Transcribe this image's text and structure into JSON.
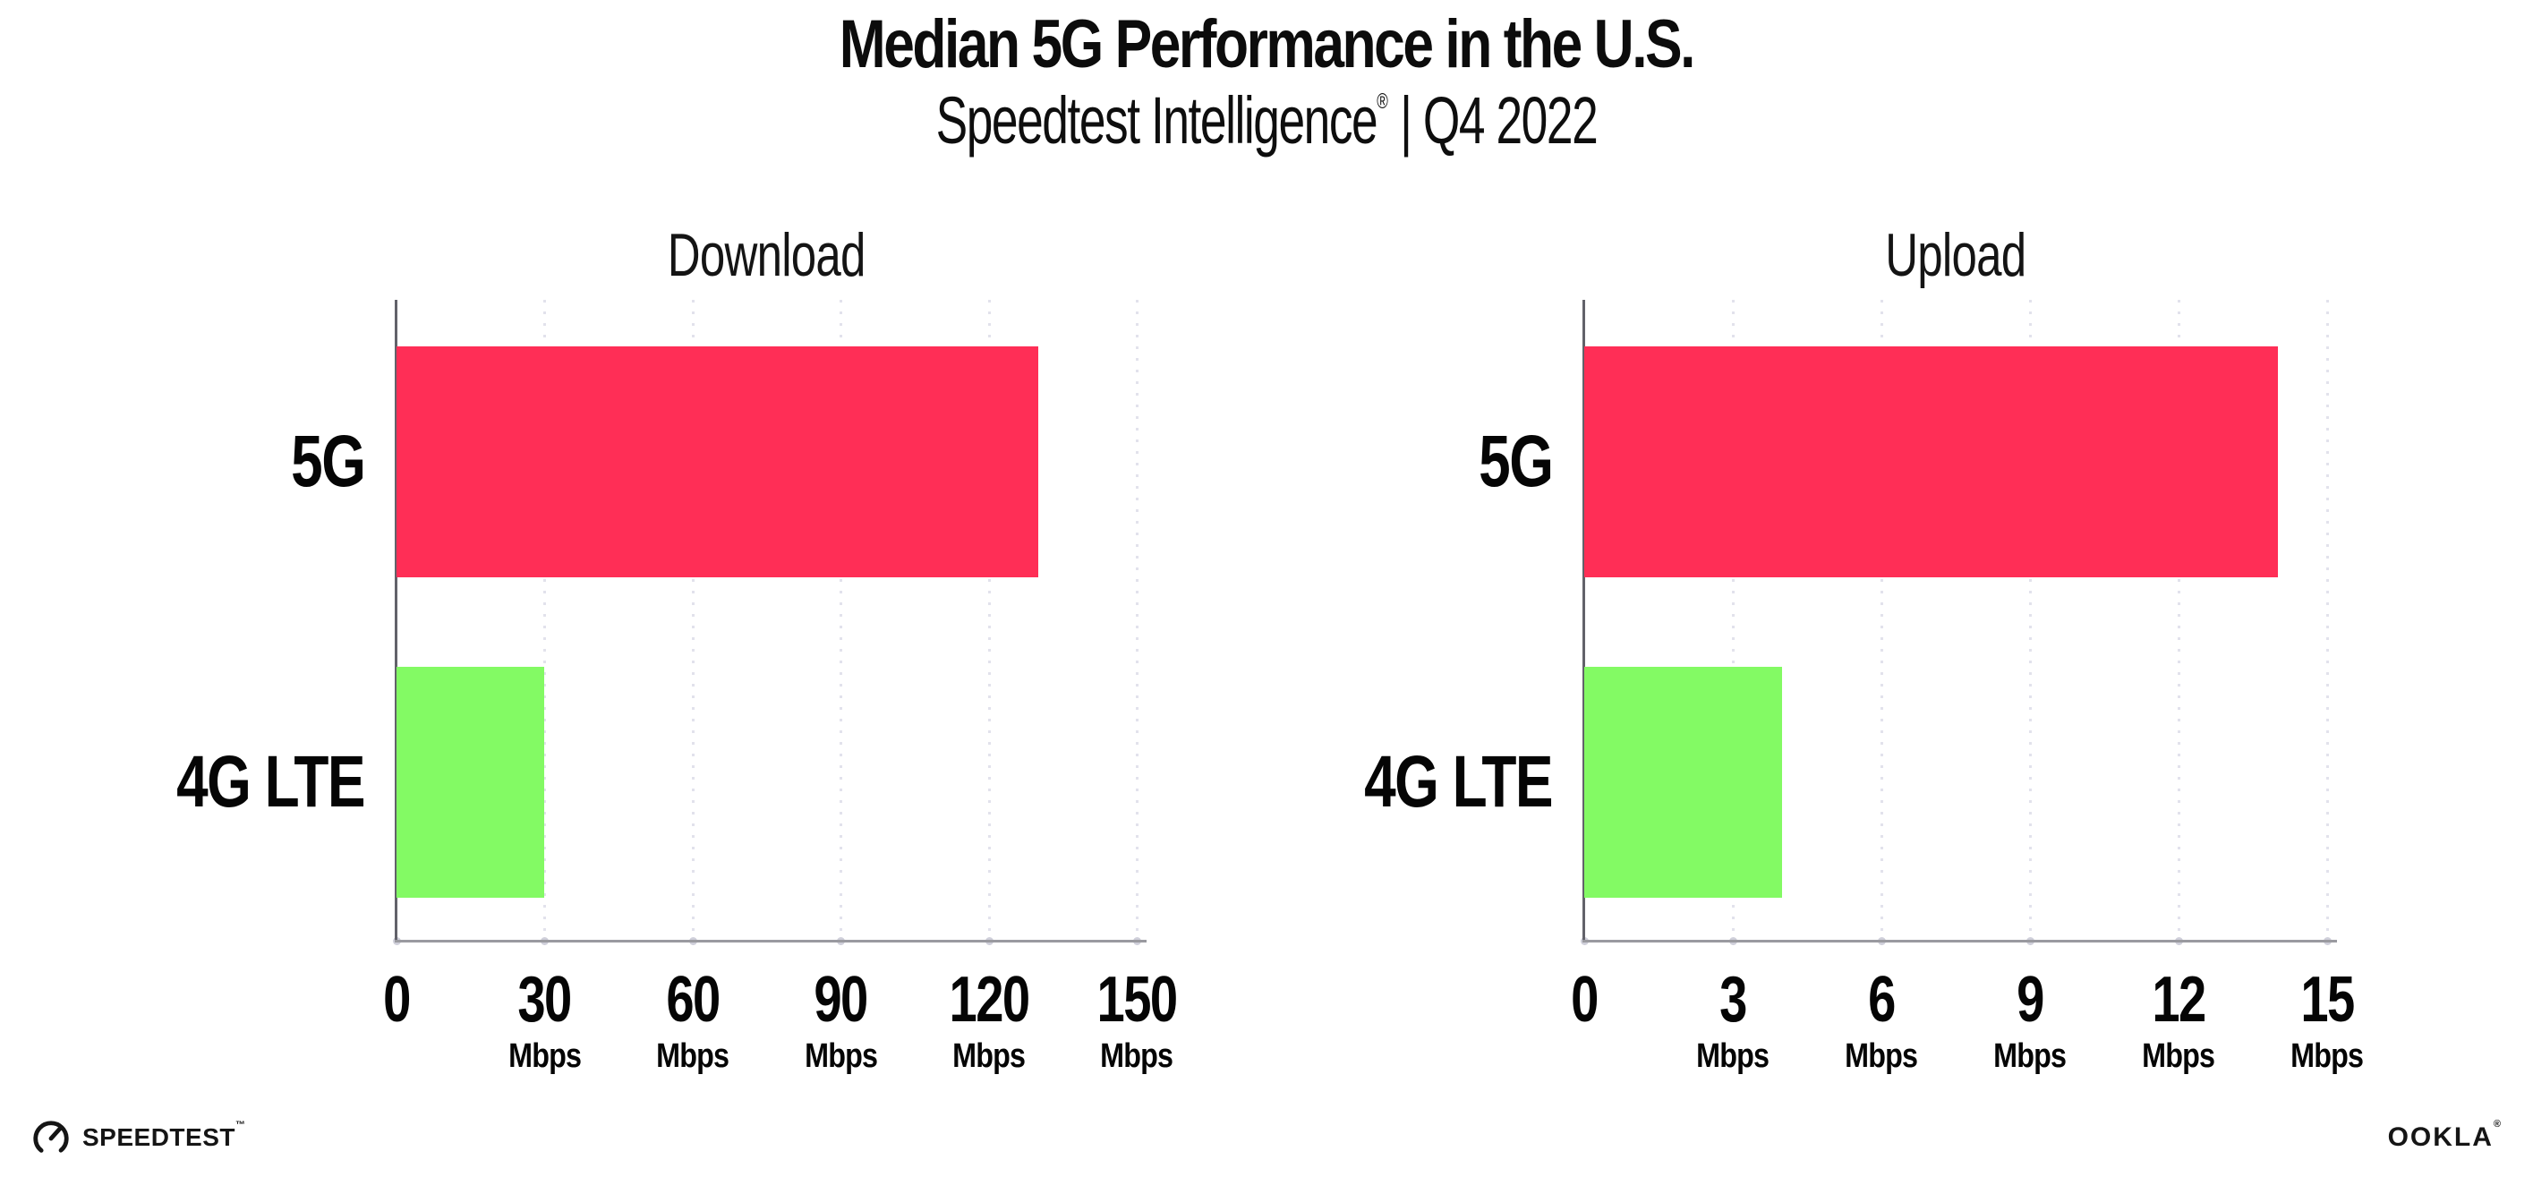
{
  "header": {
    "title": "Median 5G Performance in the U.S.",
    "subtitle_brand": "Speedtest Intelligence",
    "subtitle_reg": "®",
    "subtitle_rest": " | Q4 2022"
  },
  "footer": {
    "speedtest_label": "SPEEDTEST",
    "speedtest_tm": "™",
    "ookla_label": "OOKLA",
    "ookla_reg": "®"
  },
  "colors": {
    "bar_5g": "#FF2E56",
    "bar_4g_lte": "#83FA64",
    "gridline": "#E2E2EC",
    "x_axis_line": "#9A9AA0",
    "y_axis_line": "#62626A",
    "text": "#111111"
  },
  "chart_data": [
    {
      "type": "bar",
      "orientation": "horizontal",
      "title": "Download",
      "categories": [
        "5G",
        "4G LTE"
      ],
      "values": [
        130,
        30
      ],
      "unit": "Mbps",
      "xlim": [
        0,
        150
      ],
      "xticks": [
        0,
        30,
        60,
        90,
        120,
        150
      ],
      "xtick_unit_label": "Mbps",
      "grid": "vertical-dotted",
      "legend": "none",
      "bar_colors": [
        "#FF2E56",
        "#83FA64"
      ]
    },
    {
      "type": "bar",
      "orientation": "horizontal",
      "title": "Upload",
      "categories": [
        "5G",
        "4G LTE"
      ],
      "values": [
        14,
        4
      ],
      "unit": "Mbps",
      "xlim": [
        0,
        15
      ],
      "xticks": [
        0,
        3,
        6,
        9,
        12,
        15
      ],
      "xtick_unit_label": "Mbps",
      "grid": "vertical-dotted",
      "legend": "none",
      "bar_colors": [
        "#FF2E56",
        "#83FA64"
      ]
    }
  ]
}
